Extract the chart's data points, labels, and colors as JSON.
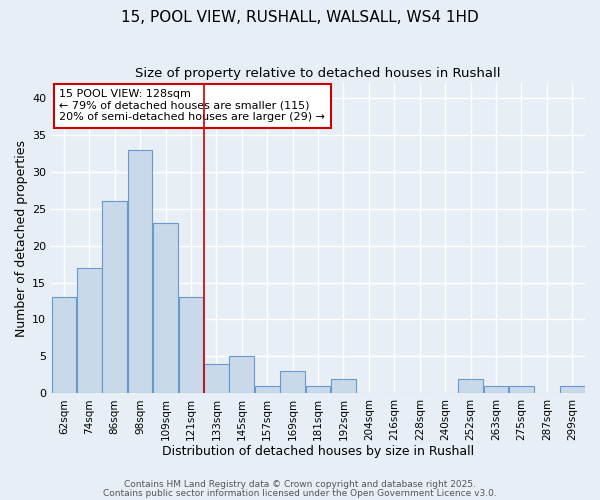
{
  "title_line1": "15, POOL VIEW, RUSHALL, WALSALL, WS4 1HD",
  "title_line2": "Size of property relative to detached houses in Rushall",
  "xlabel": "Distribution of detached houses by size in Rushall",
  "ylabel": "Number of detached properties",
  "bin_labels": [
    "62sqm",
    "74sqm",
    "86sqm",
    "98sqm",
    "109sqm",
    "121sqm",
    "133sqm",
    "145sqm",
    "157sqm",
    "169sqm",
    "181sqm",
    "192sqm",
    "204sqm",
    "216sqm",
    "228sqm",
    "240sqm",
    "252sqm",
    "263sqm",
    "275sqm",
    "287sqm",
    "299sqm"
  ],
  "bar_values": [
    13,
    17,
    26,
    33,
    23,
    13,
    4,
    5,
    1,
    3,
    1,
    2,
    0,
    0,
    0,
    0,
    2,
    1,
    1,
    0,
    1
  ],
  "bar_color": "#c9d9ea",
  "bar_edge_color": "#6699cc",
  "bar_linewidth": 0.8,
  "red_line_bin": 5.5,
  "annotation_text": "15 POOL VIEW: 128sqm\n← 79% of detached houses are smaller (115)\n20% of semi-detached houses are larger (29) →",
  "annotation_box_color": "white",
  "annotation_box_edge_color": "#cc0000",
  "ylim": [
    0,
    42
  ],
  "yticks": [
    0,
    5,
    10,
    15,
    20,
    25,
    30,
    35,
    40
  ],
  "footer_line1": "Contains HM Land Registry data © Crown copyright and database right 2025.",
  "footer_line2": "Contains public sector information licensed under the Open Government Licence v3.0.",
  "background_color": "#e8eef5",
  "grid_color": "white",
  "title_fontsize": 11,
  "subtitle_fontsize": 9.5,
  "axis_label_fontsize": 9,
  "tick_fontsize": 7.5,
  "annotation_fontsize": 8,
  "footer_fontsize": 6.5
}
